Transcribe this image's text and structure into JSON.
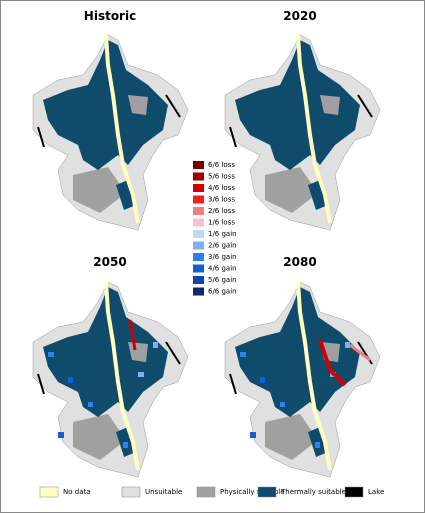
{
  "panels": [
    {
      "title": "Historic"
    },
    {
      "title": "2020"
    },
    {
      "title": "2050"
    },
    {
      "title": "2080"
    }
  ],
  "change_legend": [
    {
      "label": "6/6 loss",
      "color": "#700000"
    },
    {
      "label": "5/6 loss",
      "color": "#a00000"
    },
    {
      "label": "4/6 loss",
      "color": "#d00000"
    },
    {
      "label": "3/6 loss",
      "color": "#f02020"
    },
    {
      "label": "2/6 loss",
      "color": "#f08080"
    },
    {
      "label": "1/6 loss",
      "color": "#f8c0c8"
    },
    {
      "label": "1/6 gain",
      "color": "#c0d8f8"
    },
    {
      "label": "2/6 gain",
      "color": "#80b0f0"
    },
    {
      "label": "3/6 gain",
      "color": "#3080f0"
    },
    {
      "label": "4/6 gain",
      "color": "#1060d8"
    },
    {
      "label": "5/6 gain",
      "color": "#1048a8"
    },
    {
      "label": "6/6 gain",
      "color": "#0a2870"
    }
  ],
  "legend": [
    {
      "label": "No data",
      "color": "#ffffc0"
    },
    {
      "label": "Unsuitable",
      "color": "#e0e0e0"
    },
    {
      "label": "Physically suitable",
      "color": "#a0a0a0"
    },
    {
      "label": "Thermally suitable",
      "color": "#0f4c6c"
    },
    {
      "label": "Lake",
      "color": "#000000"
    }
  ]
}
